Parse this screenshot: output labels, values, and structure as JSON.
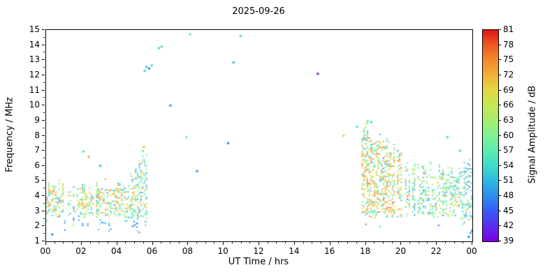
{
  "chart_data": {
    "type": "heatmap",
    "title": "2025-09-26",
    "xlabel": "UT Time / hrs",
    "ylabel": "Frequency / MHz",
    "xlim": [
      0,
      24
    ],
    "ylim": [
      1,
      15
    ],
    "grid": false,
    "background": "#ffffff",
    "xticks": {
      "values": [
        0,
        2,
        4,
        6,
        8,
        10,
        12,
        14,
        16,
        18,
        20,
        22,
        24
      ],
      "labels": [
        "00",
        "02",
        "04",
        "06",
        "08",
        "10",
        "12",
        "14",
        "16",
        "18",
        "20",
        "22",
        "00"
      ],
      "minor_step": 0.5
    },
    "yticks": {
      "values": [
        1,
        2,
        3,
        4,
        5,
        6,
        7,
        8,
        9,
        10,
        11,
        12,
        13,
        14,
        15
      ],
      "labels": [
        "1",
        "2",
        "3",
        "4",
        "5",
        "6",
        "7",
        "8",
        "9",
        "10",
        "11",
        "12",
        "13",
        "14",
        "15"
      ],
      "minor_step": 0.5
    },
    "colorbar": {
      "label": "Signal Amplitude / dB",
      "domain": [
        39,
        81
      ],
      "ticks": [
        39,
        42,
        45,
        48,
        51,
        54,
        57,
        60,
        63,
        66,
        69,
        72,
        75,
        78,
        81
      ],
      "stops": [
        "#7c00e0",
        "#5a2ef2",
        "#3a5cf5",
        "#2b8df0",
        "#2fb9e2",
        "#3fdcc8",
        "#5cecb0",
        "#7ff392",
        "#a4ee6d",
        "#c6e656",
        "#e3d845",
        "#f2b13a",
        "#f58a2c",
        "#ee5a20",
        "#df1616"
      ]
    },
    "col_dt": 0.1,
    "row_df": 0.12,
    "seed": 20250926,
    "clusters": [
      {
        "name": "morning-main",
        "t0": 0.05,
        "t1": 4.45,
        "f0": 2.55,
        "f1": 5.15,
        "top_jitter": 0.9,
        "bot_jitter": 0.35,
        "density": 0.5,
        "col_skip": 0.1,
        "hot_band": [
          3.0,
          4.6
        ],
        "hot_p": 0.3,
        "amp_bands": [
          [
            48,
            57,
            0.3
          ],
          [
            54,
            66,
            0.4
          ],
          [
            64,
            75,
            0.3
          ]
        ]
      },
      {
        "name": "morning-low",
        "t0": 0.05,
        "t1": 5.3,
        "f0": 1.55,
        "f1": 2.55,
        "top_jitter": 0.3,
        "bot_jitter": 0.2,
        "density": 0.1,
        "col_skip": 0.25,
        "amp_bands": [
          [
            45,
            54,
            0.8
          ],
          [
            51,
            60,
            0.2
          ]
        ]
      },
      {
        "name": "morning-rise",
        "t0": 4.45,
        "t1": 5.65,
        "f0": 2.3,
        "f1": 5.2,
        "f1_end": 7.1,
        "top_jitter": 0.7,
        "bot_jitter": 0.3,
        "density": 0.45,
        "col_skip": 0.05,
        "hot_band": [
          3.0,
          4.5
        ],
        "hot_p": 0.2,
        "amp_bands": [
          [
            48,
            60,
            0.55
          ],
          [
            54,
            69,
            0.3
          ],
          [
            64,
            74,
            0.15
          ]
        ]
      },
      {
        "name": "morning-rise-low",
        "t0": 4.6,
        "t1": 5.7,
        "f0": 1.9,
        "f1": 2.4,
        "top_jitter": 0.2,
        "bot_jitter": 0.1,
        "density": 0.22,
        "col_skip": 0.2,
        "amp_bands": [
          [
            45,
            54,
            1
          ]
        ]
      },
      {
        "name": "evening-dense",
        "t0": 17.8,
        "t1": 20.15,
        "f0": 2.45,
        "f1": 8.9,
        "f1_end": 7.2,
        "top_jitter": 1.1,
        "bot_jitter": 0.5,
        "density": 0.5,
        "col_skip": 0.06,
        "hot_band": [
          3.0,
          6.0
        ],
        "hot_p": 0.38,
        "amp_bands": [
          [
            48,
            58,
            0.25
          ],
          [
            54,
            66,
            0.35
          ],
          [
            64,
            78,
            0.4
          ]
        ]
      },
      {
        "name": "evening-late",
        "t0": 20.15,
        "t1": 23.35,
        "f0": 2.6,
        "f1": 6.4,
        "f1_end": 6.1,
        "top_jitter": 1.0,
        "bot_jitter": 0.4,
        "density": 0.42,
        "col_skip": 0.08,
        "hot_band": [
          3.2,
          4.2
        ],
        "hot_p": 0.15,
        "amp_bands": [
          [
            48,
            58,
            0.4
          ],
          [
            54,
            66,
            0.45
          ],
          [
            63,
            73,
            0.15
          ]
        ]
      },
      {
        "name": "late-end",
        "t0": 23.35,
        "t1": 23.98,
        "f0": 2.1,
        "f1": 6.6,
        "f1_end": 7.0,
        "top_jitter": 0.8,
        "bot_jitter": 0.3,
        "density": 0.38,
        "col_skip": 0.08,
        "amp_bands": [
          [
            45,
            55,
            0.45
          ],
          [
            52,
            63,
            0.45
          ],
          [
            60,
            68,
            0.1
          ]
        ]
      },
      {
        "name": "evening-sparse-2mhz",
        "t0": 18.0,
        "t1": 23.3,
        "f0": 1.85,
        "f1": 2.35,
        "top_jitter": 0.2,
        "bot_jitter": 0.1,
        "density": 0.05,
        "col_skip": 0.5,
        "amp_bands": [
          [
            45,
            53,
            1
          ]
        ]
      }
    ],
    "points": [
      [
        0.35,
        1.45,
        48
      ],
      [
        2.1,
        6.95,
        54
      ],
      [
        2.4,
        6.6,
        72
      ],
      [
        3.05,
        6.0,
        51
      ],
      [
        5.45,
        7.0,
        60
      ],
      [
        5.5,
        7.25,
        72
      ],
      [
        5.55,
        12.3,
        54
      ],
      [
        5.65,
        12.55,
        51
      ],
      [
        5.8,
        12.45,
        48
      ],
      [
        5.95,
        12.65,
        54
      ],
      [
        6.35,
        13.8,
        54
      ],
      [
        6.5,
        13.9,
        54
      ],
      [
        7.0,
        10.0,
        48
      ],
      [
        7.9,
        7.9,
        60
      ],
      [
        8.1,
        14.7,
        57
      ],
      [
        8.5,
        5.65,
        48
      ],
      [
        10.25,
        7.5,
        48
      ],
      [
        10.55,
        12.85,
        51
      ],
      [
        10.95,
        14.6,
        54
      ],
      [
        15.3,
        12.1,
        40
      ],
      [
        16.75,
        8.0,
        70
      ],
      [
        17.5,
        8.6,
        56
      ],
      [
        17.85,
        7.8,
        54
      ],
      [
        17.9,
        8.3,
        60
      ],
      [
        18.05,
        8.8,
        66
      ],
      [
        18.1,
        8.95,
        57
      ],
      [
        18.3,
        8.9,
        54
      ],
      [
        22.6,
        7.9,
        54
      ],
      [
        23.3,
        7.0,
        54
      ],
      [
        23.8,
        1.3,
        48
      ],
      [
        23.9,
        1.55,
        51
      ],
      [
        23.98,
        1.7,
        48
      ]
    ]
  }
}
